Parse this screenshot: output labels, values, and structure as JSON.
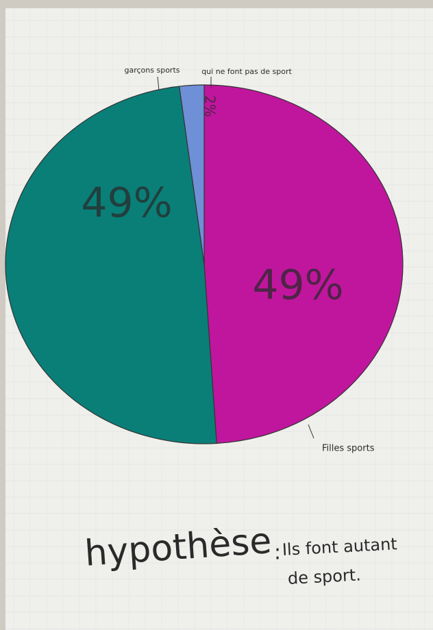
{
  "chart_data": {
    "type": "pie",
    "categories": [
      "Filles sports",
      "garçons sports",
      "qui ne font pas de sport"
    ],
    "values": [
      49,
      49,
      2
    ],
    "value_labels": [
      "49%",
      "49%",
      "2%"
    ],
    "colors": [
      "#c0169e",
      "#0a7f78",
      "#6f8fd6"
    ]
  },
  "hypothesis": {
    "label": "hypothèse",
    "separator": ":",
    "lines": [
      "Ils font autant",
      "de sport."
    ]
  }
}
